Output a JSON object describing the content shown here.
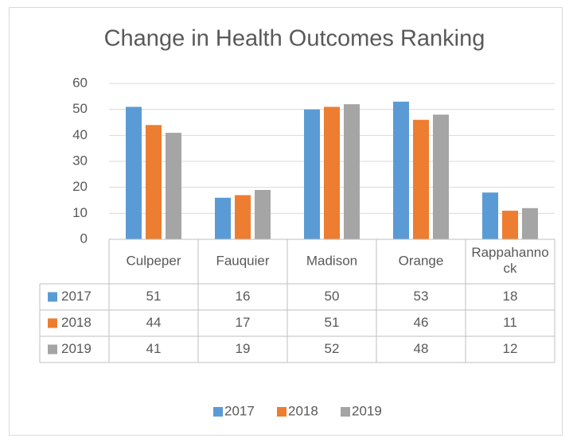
{
  "chart_data": {
    "type": "bar",
    "title": "Change in Health Outcomes Ranking",
    "categories": [
      "Culpeper",
      "Fauquier",
      "Madison",
      "Orange",
      "Rappahannock"
    ],
    "series": [
      {
        "name": "2017",
        "color": "#5b9bd5",
        "values": [
          51,
          16,
          50,
          53,
          18
        ]
      },
      {
        "name": "2018",
        "color": "#ed7d31",
        "values": [
          44,
          17,
          51,
          46,
          11
        ]
      },
      {
        "name": "2019",
        "color": "#a5a5a5",
        "values": [
          41,
          19,
          52,
          48,
          12
        ]
      }
    ],
    "ylim": [
      0,
      60
    ],
    "yticks": [
      0,
      10,
      20,
      30,
      40,
      50,
      60
    ],
    "grid": true,
    "data_table": true,
    "legend": "bottom"
  }
}
